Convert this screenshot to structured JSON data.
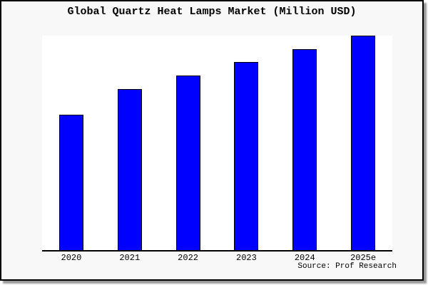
{
  "page": {
    "title": "Global Quartz Heat Lamps Market (Million USD)",
    "source": "Source: Prof Research"
  },
  "chart_data": {
    "type": "bar",
    "title": "Global Quartz Heat Lamps Market (Million USD)",
    "categories": [
      "2020",
      "2021",
      "2022",
      "2023",
      "2024",
      "2025e"
    ],
    "values": [
      63.1,
      75.1,
      81.4,
      87.7,
      93.7,
      100
    ],
    "value_note": "No y-axis scale, ticks or gridlines shown; values are bar heights relative to tallest bar (2025e) = 100",
    "xlabel": "",
    "ylabel": "",
    "ylim": [
      0,
      100
    ],
    "grid": false,
    "legend": "none",
    "annotations": [
      "Source: Prof Research"
    ]
  },
  "colors": {
    "bar_fill": "#0000ff",
    "bar_border": "#000000",
    "canvas_background": "#f8f8f8",
    "plot_background": "#ffffff",
    "frame_border": "#000000",
    "axis_line": "#000000",
    "text": "#000000"
  }
}
